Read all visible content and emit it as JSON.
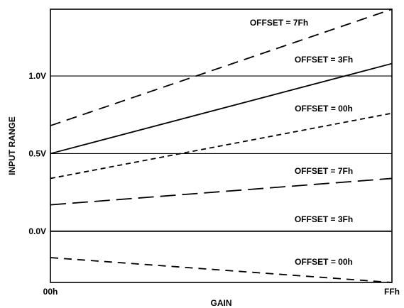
{
  "chart_data": {
    "type": "line",
    "xlabel": "GAIN",
    "ylabel": "INPUT RANGE",
    "x_tick_labels": [
      "00h",
      "FFh"
    ],
    "x_ticks": [
      0,
      255
    ],
    "xlim": [
      0,
      255
    ],
    "y_tick_labels": [
      "0.0V",
      "0.5V",
      "1.0V"
    ],
    "y_ticks": [
      0.0,
      0.5,
      1.0
    ],
    "ylim": [
      -0.33,
      1.43
    ],
    "grid": "horizontal lines at 0.0V, 0.5V, 1.0V",
    "line_color": "#000000",
    "series": [
      {
        "name": "OFFSET = 7Fh",
        "dash": "long-dash",
        "x": [
          0,
          255
        ],
        "y": [
          0.68,
          1.43
        ]
      },
      {
        "name": "OFFSET = 3Fh",
        "dash": "solid",
        "x": [
          0,
          255
        ],
        "y": [
          0.5,
          1.08
        ]
      },
      {
        "name": "OFFSET = 00h",
        "dash": "short-dash",
        "x": [
          0,
          255
        ],
        "y": [
          0.34,
          0.76
        ]
      },
      {
        "name": "OFFSET = 7Fh",
        "dash": "long-dash-gap",
        "x": [
          0,
          255
        ],
        "y": [
          0.17,
          0.34
        ]
      },
      {
        "name": "OFFSET = 3Fh",
        "dash": "solid",
        "x": [
          0,
          255
        ],
        "y": [
          0.0,
          0.0
        ]
      },
      {
        "name": "OFFSET = 00h",
        "dash": "medium-dash",
        "x": [
          0,
          255
        ],
        "y": [
          -0.17,
          -0.33
        ]
      }
    ]
  }
}
